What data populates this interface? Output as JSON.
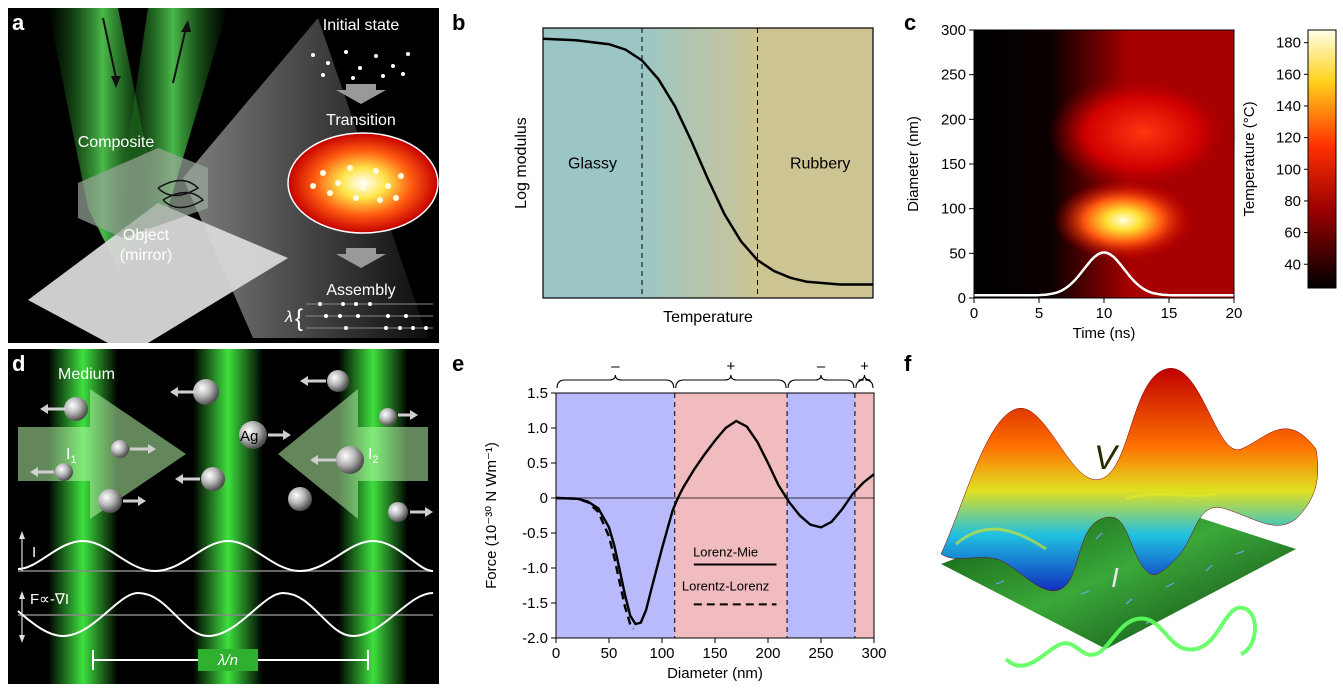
{
  "panel_labels": {
    "a": "a",
    "b": "b",
    "c": "c",
    "d": "d",
    "e": "e",
    "f": "f"
  },
  "panel_a": {
    "initial_state": "Initial state",
    "transition": "Transition",
    "assembly": "Assembly",
    "composite": "Composite",
    "object": "Object",
    "mirror": "(mirror)",
    "lambda": "λ",
    "lambda_brace": "{"
  },
  "panel_d": {
    "medium": "Medium",
    "ag": "Ag",
    "i1": "I",
    "i1_sub": "1",
    "i2": "I",
    "i2_sub": "2",
    "intensity": "I",
    "force": "F∝-∇I",
    "period": "λ/n"
  },
  "panel_f": {
    "v": "V",
    "i": "I"
  },
  "chart_data": [
    {
      "panel": "b",
      "type": "line",
      "xlabel": "Temperature",
      "ylabel": "Log modulus",
      "regions": [
        {
          "label": "Glassy"
        },
        {
          "label": "Rubbery"
        }
      ],
      "x": [
        0,
        0.1,
        0.2,
        0.25,
        0.3,
        0.35,
        0.4,
        0.45,
        0.5,
        0.55,
        0.6,
        0.65,
        0.7,
        0.75,
        0.8,
        0.9,
        1.0
      ],
      "values": [
        0.96,
        0.955,
        0.94,
        0.92,
        0.88,
        0.81,
        0.71,
        0.58,
        0.44,
        0.31,
        0.21,
        0.14,
        0.1,
        0.075,
        0.06,
        0.05,
        0.05
      ],
      "transitions": [
        0.3,
        0.65
      ],
      "colors": {
        "glassy": "#9cc6c6",
        "rubbery": "#cdc494"
      }
    },
    {
      "panel": "c",
      "type": "heatmap",
      "xlabel": "Time (ns)",
      "ylabel": "Diameter (nm)",
      "colorbar_label": "Temperature (°C)",
      "xlim": [
        0,
        20
      ],
      "ylim": [
        0,
        300
      ],
      "xticks": [
        "0",
        "5",
        "10",
        "15",
        "20"
      ],
      "yticks": [
        "0",
        "50",
        "100",
        "150",
        "200",
        "250",
        "300"
      ],
      "colorbar_ticks": [
        "40",
        "60",
        "80",
        "100",
        "120",
        "140",
        "160",
        "180"
      ],
      "colorbar_range": [
        25,
        188
      ],
      "hotspots": [
        {
          "time": 11.5,
          "diameter": 87,
          "temperature": 188
        },
        {
          "time": 13,
          "diameter": 185,
          "temperature": 90
        }
      ],
      "pulse": {
        "center": 10,
        "height_nm": 48,
        "color": "#ffffff"
      }
    },
    {
      "panel": "e",
      "type": "line",
      "xlabel": "Diameter (nm)",
      "ylabel": "Force (10⁻³⁰ N Wm⁻¹)",
      "xlim": [
        0,
        300
      ],
      "ylim": [
        -2.0,
        1.5
      ],
      "xticks": [
        "0",
        "50",
        "100",
        "150",
        "200",
        "250",
        "300"
      ],
      "yticks": [
        "-2.0",
        "-1.5",
        "-1.0",
        "-0.5",
        "0",
        "0.5",
        "1.0",
        "1.5"
      ],
      "signs": [
        "–",
        "+",
        "–",
        "+"
      ],
      "boundaries": [
        112,
        218,
        282
      ],
      "series": [
        {
          "name": "Lorenz-Mie",
          "style": "solid",
          "x": [
            0,
            20,
            30,
            40,
            50,
            55,
            60,
            65,
            70,
            75,
            80,
            85,
            90,
            100,
            110,
            115,
            120,
            130,
            140,
            150,
            160,
            170,
            180,
            190,
            200,
            210,
            220,
            230,
            240,
            250,
            260,
            270,
            280,
            290,
            300
          ],
          "values": [
            0,
            -0.01,
            -0.05,
            -0.15,
            -0.42,
            -0.68,
            -1.02,
            -1.38,
            -1.68,
            -1.8,
            -1.78,
            -1.6,
            -1.3,
            -0.72,
            -0.18,
            0.0,
            0.15,
            0.4,
            0.62,
            0.82,
            1.0,
            1.1,
            1.02,
            0.8,
            0.5,
            0.18,
            -0.06,
            -0.25,
            -0.38,
            -0.42,
            -0.34,
            -0.16,
            0.06,
            0.22,
            0.34
          ]
        },
        {
          "name": "Lorentz-Lorenz",
          "style": "dashed",
          "x": [
            0,
            20,
            30,
            40,
            50,
            55,
            60,
            65,
            70,
            73
          ],
          "values": [
            0,
            -0.01,
            -0.06,
            -0.2,
            -0.55,
            -0.85,
            -1.2,
            -1.55,
            -1.8,
            -1.87
          ]
        }
      ],
      "colors": {
        "negative": "#b8bafc",
        "positive": "#f0bcbf"
      }
    }
  ]
}
